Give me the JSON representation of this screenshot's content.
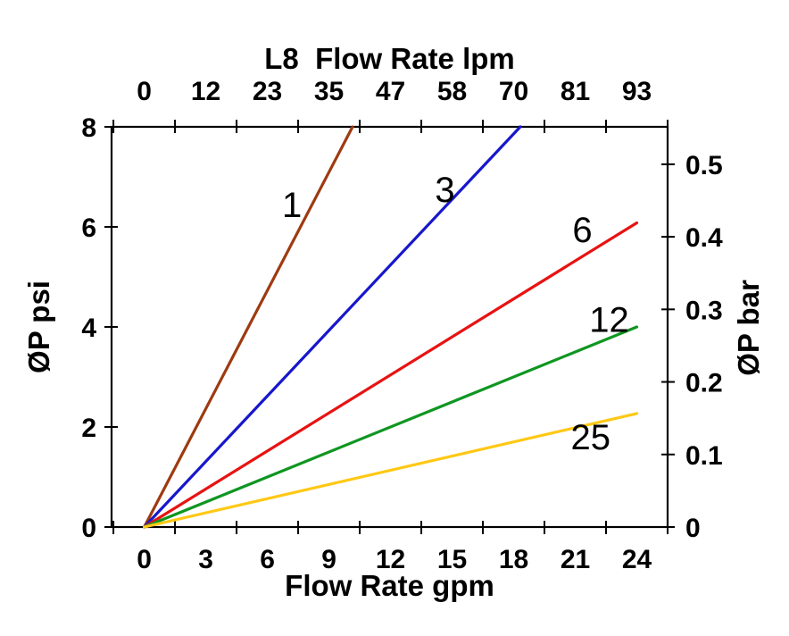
{
  "figure": {
    "background": "#ffffff",
    "axis_color": "#000000",
    "text_color": "#000000"
  },
  "chart_data": {
    "type": "line",
    "title": "L8  Flow Rate lpm",
    "x_top": {
      "label": "L8  Flow Rate lpm",
      "tick_label_positions_gpm": [
        0,
        3,
        6,
        9,
        12,
        15,
        18,
        21,
        24
      ],
      "tick_labels": [
        "0",
        "12",
        "23",
        "35",
        "47",
        "58",
        "70",
        "81",
        "93"
      ],
      "units": "lpm"
    },
    "x_bottom": {
      "label": "Flow Rate gpm",
      "tick_label_positions_gpm": [
        0,
        3,
        6,
        9,
        12,
        15,
        18,
        21,
        24
      ],
      "tick_labels": [
        "0",
        "3",
        "6",
        "9",
        "12",
        "15",
        "18",
        "21",
        "24"
      ],
      "tick_mark_positions_gpm": [
        -1.5,
        1.5,
        4.5,
        7.5,
        10.5,
        13.5,
        16.5,
        19.5,
        22.5,
        25.5
      ],
      "xlim": [
        -1.59,
        25.5
      ],
      "units": "gpm"
    },
    "y_left": {
      "label": "ØP psi",
      "tick_values": [
        0,
        2,
        4,
        6,
        8
      ],
      "tick_labels": [
        "0",
        "2",
        "4",
        "6",
        "8"
      ],
      "ylim": [
        0,
        8
      ],
      "units": "psi"
    },
    "y_right": {
      "label": "ØP bar",
      "tick_values_bar": [
        0,
        0.1,
        0.2,
        0.3,
        0.4,
        0.5
      ],
      "tick_labels": [
        "0",
        "0.1",
        "0.2",
        "0.3",
        "0.4",
        "0.5"
      ],
      "psi_per_bar": 14.5038,
      "units": "bar"
    },
    "series": [
      {
        "name": "1",
        "label": "1",
        "color": "#9E3A10",
        "points_gpm_psi": [
          [
            0,
            0
          ],
          [
            10.15,
            8
          ]
        ],
        "label_at_gpm_psi": [
          7.2,
          6.45
        ]
      },
      {
        "name": "3",
        "label": "3",
        "color": "#1717CC",
        "points_gpm_psi": [
          [
            0,
            0
          ],
          [
            18.32,
            8
          ]
        ],
        "label_at_gpm_psi": [
          14.65,
          6.75
        ]
      },
      {
        "name": "6",
        "label": "6",
        "color": "#E81212",
        "points_gpm_psi": [
          [
            0,
            0
          ],
          [
            24,
            6.08
          ]
        ],
        "label_at_gpm_psi": [
          21.35,
          5.95
        ]
      },
      {
        "name": "12",
        "label": "12",
        "color": "#0F9621",
        "points_gpm_psi": [
          [
            0,
            0
          ],
          [
            24,
            4.0
          ]
        ],
        "label_at_gpm_psi": [
          22.65,
          4.15
        ]
      },
      {
        "name": "25",
        "label": "25",
        "color": "#FFC814",
        "points_gpm_psi": [
          [
            0,
            0
          ],
          [
            24,
            2.27
          ]
        ],
        "label_at_gpm_psi": [
          21.75,
          1.8
        ]
      }
    ]
  }
}
